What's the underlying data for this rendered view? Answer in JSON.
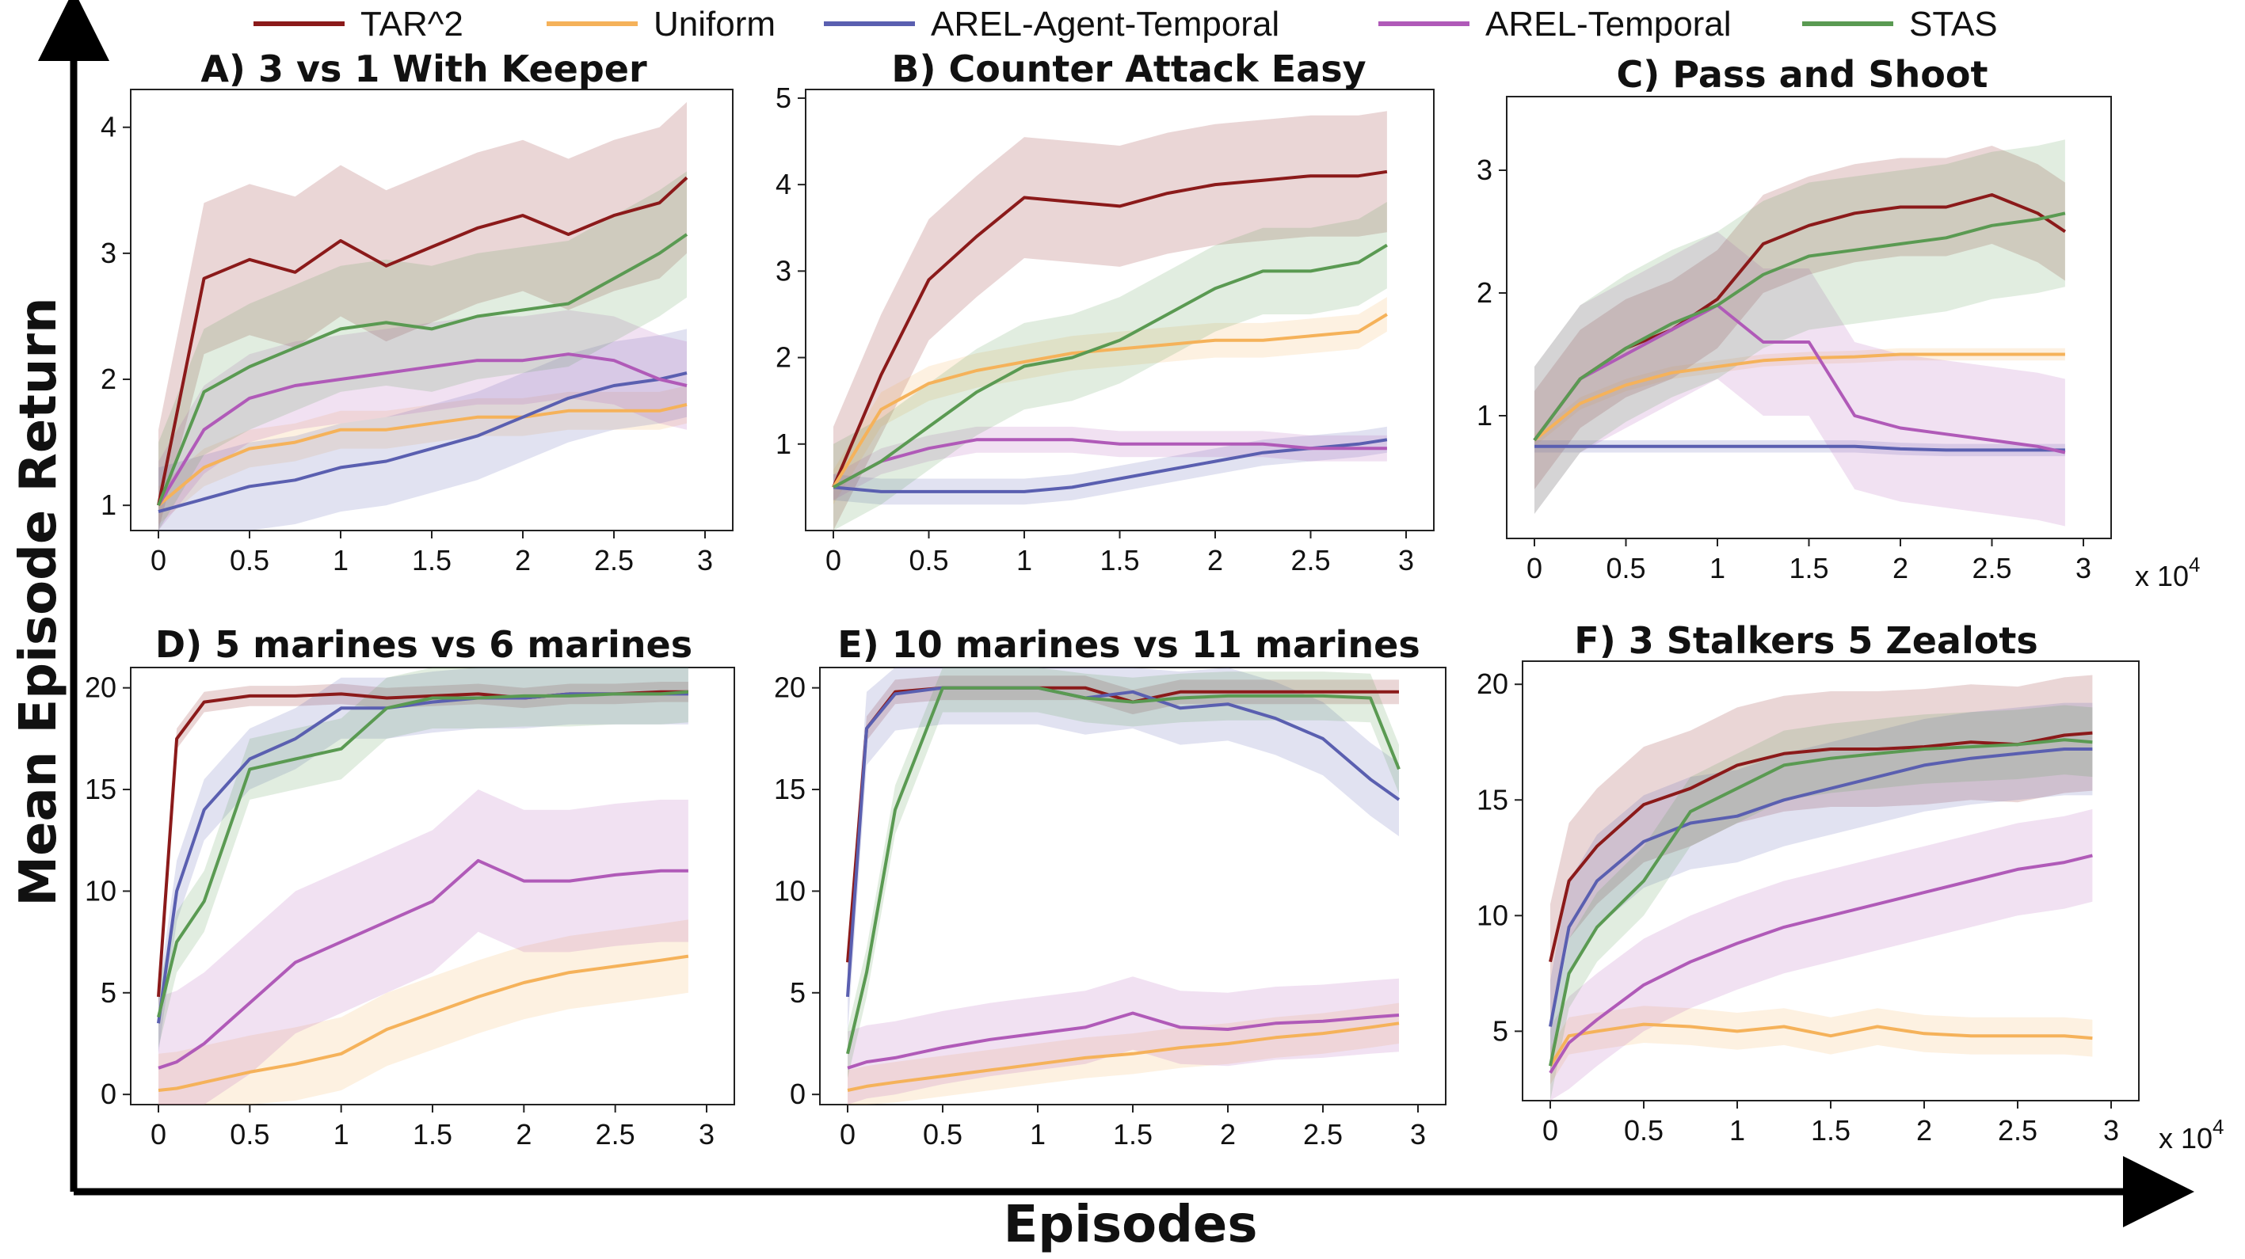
{
  "figure": {
    "xlabel": "Episodes",
    "ylabel": "Mean Episode Return",
    "legend": [
      {
        "name": "TAR^2",
        "color": "#8b1a1a"
      },
      {
        "name": "Uniform",
        "color": "#f5b25a"
      },
      {
        "name": "AREL-Agent-Temporal",
        "color": "#5a5fb0"
      },
      {
        "name": "AREL-Temporal",
        "color": "#b05ab8"
      },
      {
        "name": "STAS",
        "color": "#5a9a52"
      }
    ],
    "x_multiplier": "x 10^4"
  },
  "chart_data": [
    {
      "type": "line",
      "title": "A) 3 vs 1 With Keeper",
      "xlim": [
        0,
        3
      ],
      "ylim": [
        0.8,
        4.3
      ],
      "xticks": [
        "0",
        "0.5",
        "1",
        "1.5",
        "2",
        "2.5",
        "3"
      ],
      "yticks": [
        {
          "v": 1,
          "l": "1"
        },
        {
          "v": 2,
          "l": "2"
        },
        {
          "v": 3,
          "l": "3"
        },
        {
          "v": 4,
          "l": "4"
        }
      ],
      "x": [
        0,
        0.25,
        0.5,
        0.75,
        1,
        1.25,
        1.5,
        1.75,
        2,
        2.25,
        2.5,
        2.75,
        2.9
      ],
      "series": [
        {
          "name": "TAR^2",
          "y": [
            1.0,
            2.8,
            2.95,
            2.85,
            3.1,
            2.9,
            3.05,
            3.2,
            3.3,
            3.15,
            3.3,
            3.4,
            3.6
          ],
          "band": 0.6
        },
        {
          "name": "Uniform",
          "y": [
            1.0,
            1.3,
            1.45,
            1.5,
            1.6,
            1.6,
            1.65,
            1.7,
            1.7,
            1.75,
            1.75,
            1.75,
            1.8
          ],
          "band": 0.15
        },
        {
          "name": "AREL-Agent-Temporal",
          "y": [
            0.95,
            1.05,
            1.15,
            1.2,
            1.3,
            1.35,
            1.45,
            1.55,
            1.7,
            1.85,
            1.95,
            2.0,
            2.05
          ],
          "band": 0.35
        },
        {
          "name": "AREL-Temporal",
          "y": [
            1.0,
            1.6,
            1.85,
            1.95,
            2.0,
            2.05,
            2.1,
            2.15,
            2.15,
            2.2,
            2.15,
            2.0,
            1.95
          ],
          "band": 0.35
        },
        {
          "name": "STAS",
          "y": [
            1.0,
            1.9,
            2.1,
            2.25,
            2.4,
            2.45,
            2.4,
            2.5,
            2.55,
            2.6,
            2.8,
            3.0,
            3.15
          ],
          "band": 0.5
        }
      ]
    },
    {
      "type": "line",
      "title": "B) Counter Attack Easy",
      "xlim": [
        0,
        3
      ],
      "ylim": [
        0.0,
        5.1
      ],
      "xticks": [
        "0",
        "0.5",
        "1",
        "1.5",
        "2",
        "2.5",
        "3"
      ],
      "yticks": [
        {
          "v": 1,
          "l": "1"
        },
        {
          "v": 2,
          "l": "2"
        },
        {
          "v": 3,
          "l": "3"
        },
        {
          "v": 4,
          "l": "4"
        },
        {
          "v": 5,
          "l": "5"
        }
      ],
      "x": [
        0,
        0.25,
        0.5,
        0.75,
        1,
        1.25,
        1.5,
        1.75,
        2,
        2.25,
        2.5,
        2.75,
        2.9
      ],
      "series": [
        {
          "name": "TAR^2",
          "y": [
            0.5,
            1.8,
            2.9,
            3.4,
            3.85,
            3.8,
            3.75,
            3.9,
            4.0,
            4.05,
            4.1,
            4.1,
            4.15
          ],
          "band": 0.7
        },
        {
          "name": "Uniform",
          "y": [
            0.5,
            1.4,
            1.7,
            1.85,
            1.95,
            2.05,
            2.1,
            2.15,
            2.2,
            2.2,
            2.25,
            2.3,
            2.5
          ],
          "band": 0.2
        },
        {
          "name": "AREL-Agent-Temporal",
          "y": [
            0.5,
            0.45,
            0.45,
            0.45,
            0.45,
            0.5,
            0.6,
            0.7,
            0.8,
            0.9,
            0.95,
            1.0,
            1.05
          ],
          "band": 0.15
        },
        {
          "name": "AREL-Temporal",
          "y": [
            0.5,
            0.8,
            0.95,
            1.05,
            1.05,
            1.05,
            1.0,
            1.0,
            1.0,
            1.0,
            0.95,
            0.95,
            0.95
          ],
          "band": 0.15
        },
        {
          "name": "STAS",
          "y": [
            0.5,
            0.8,
            1.2,
            1.6,
            1.9,
            2.0,
            2.2,
            2.5,
            2.8,
            3.0,
            3.0,
            3.1,
            3.3
          ],
          "band": 0.5
        }
      ]
    },
    {
      "type": "line",
      "title": "C) Pass and Shoot",
      "xlim": [
        0,
        3
      ],
      "ylim": [
        0.0,
        3.6
      ],
      "xticks": [
        "0",
        "0.5",
        "1",
        "1.5",
        "2",
        "2.5",
        "3"
      ],
      "yticks": [
        {
          "v": 1,
          "l": "1"
        },
        {
          "v": 2,
          "l": "2"
        },
        {
          "v": 3,
          "l": "3"
        }
      ],
      "x": [
        0,
        0.25,
        0.5,
        0.75,
        1,
        1.25,
        1.5,
        1.75,
        2,
        2.25,
        2.5,
        2.75,
        2.9
      ],
      "series": [
        {
          "name": "TAR^2",
          "y": [
            0.8,
            1.3,
            1.55,
            1.7,
            1.95,
            2.4,
            2.55,
            2.65,
            2.7,
            2.7,
            2.8,
            2.65,
            2.5
          ],
          "band": 0.4
        },
        {
          "name": "Uniform",
          "y": [
            0.8,
            1.1,
            1.25,
            1.35,
            1.4,
            1.45,
            1.47,
            1.48,
            1.5,
            1.5,
            1.5,
            1.5,
            1.5
          ],
          "band": 0.05
        },
        {
          "name": "AREL-Agent-Temporal",
          "y": [
            0.75,
            0.75,
            0.75,
            0.75,
            0.75,
            0.75,
            0.75,
            0.75,
            0.73,
            0.72,
            0.72,
            0.72,
            0.72
          ],
          "band": 0.05
        },
        {
          "name": "AREL-Temporal",
          "y": [
            0.8,
            1.3,
            1.5,
            1.7,
            1.9,
            1.6,
            1.6,
            1.0,
            0.9,
            0.85,
            0.8,
            0.75,
            0.7
          ],
          "band": 0.6
        },
        {
          "name": "STAS",
          "y": [
            0.8,
            1.3,
            1.55,
            1.75,
            1.9,
            2.15,
            2.3,
            2.35,
            2.4,
            2.45,
            2.55,
            2.6,
            2.65
          ],
          "band": 0.6
        }
      ]
    },
    {
      "type": "line",
      "title": "D) 5 marines vs 6 marines",
      "xlim": [
        0,
        3
      ],
      "ylim": [
        -0.5,
        21
      ],
      "xticks": [
        "0",
        "0.5",
        "1",
        "1.5",
        "2",
        "2.5",
        "3"
      ],
      "yticks": [
        {
          "v": 0,
          "l": "0"
        },
        {
          "v": 5,
          "l": "5"
        },
        {
          "v": 10,
          "l": "10"
        },
        {
          "v": 15,
          "l": "15"
        },
        {
          "v": 20,
          "l": "20"
        }
      ],
      "x": [
        0,
        0.1,
        0.25,
        0.5,
        0.75,
        1,
        1.25,
        1.5,
        1.75,
        2,
        2.25,
        2.5,
        2.75,
        2.9
      ],
      "series": [
        {
          "name": "TAR^2",
          "y": [
            4.8,
            17.5,
            19.3,
            19.6,
            19.6,
            19.7,
            19.5,
            19.6,
            19.7,
            19.5,
            19.7,
            19.7,
            19.8,
            19.8
          ],
          "band": 0.5
        },
        {
          "name": "Uniform",
          "y": [
            0.2,
            0.3,
            0.6,
            1.1,
            1.5,
            2.0,
            3.2,
            4.0,
            4.8,
            5.5,
            6.0,
            6.3,
            6.6,
            6.8
          ],
          "band": 1.8
        },
        {
          "name": "AREL-Agent-Temporal",
          "y": [
            3.5,
            10,
            14,
            16.5,
            17.5,
            19,
            19,
            19.3,
            19.5,
            19.5,
            19.7,
            19.7,
            19.7,
            19.7
          ],
          "band": 1.5
        },
        {
          "name": "AREL-Temporal",
          "y": [
            1.3,
            1.6,
            2.5,
            4.5,
            6.5,
            7.5,
            8.5,
            9.5,
            11.5,
            10.5,
            10.5,
            10.8,
            11.0,
            11.0
          ],
          "band": 3.5
        },
        {
          "name": "STAS",
          "y": [
            3.8,
            7.5,
            9.5,
            16,
            16.5,
            17,
            19,
            19.5,
            19.5,
            19.6,
            19.6,
            19.7,
            19.7,
            19.8
          ],
          "band": 1.5
        }
      ]
    },
    {
      "type": "line",
      "title": "E) 10 marines vs 11 marines",
      "xlim": [
        0,
        3
      ],
      "ylim": [
        -0.5,
        21
      ],
      "xticks": [
        "0",
        "0.5",
        "1",
        "1.5",
        "2",
        "2.5",
        "3"
      ],
      "yticks": [
        {
          "v": 0,
          "l": "0"
        },
        {
          "v": 5,
          "l": "5"
        },
        {
          "v": 10,
          "l": "10"
        },
        {
          "v": 15,
          "l": "15"
        },
        {
          "v": 20,
          "l": "20"
        }
      ],
      "x": [
        0,
        0.1,
        0.25,
        0.5,
        0.75,
        1,
        1.25,
        1.5,
        1.75,
        2,
        2.25,
        2.5,
        2.75,
        2.9
      ],
      "series": [
        {
          "name": "TAR^2",
          "y": [
            6.5,
            18,
            19.8,
            20,
            20,
            20,
            20,
            19.3,
            19.8,
            19.8,
            19.8,
            19.8,
            19.8,
            19.8
          ],
          "band": 0.6
        },
        {
          "name": "Uniform",
          "y": [
            0.2,
            0.4,
            0.6,
            0.9,
            1.2,
            1.5,
            1.8,
            2.0,
            2.3,
            2.5,
            2.8,
            3.0,
            3.3,
            3.5
          ],
          "band": 1.0
        },
        {
          "name": "AREL-Agent-Temporal",
          "y": [
            4.8,
            18,
            19.7,
            20,
            20,
            20,
            19.5,
            19.8,
            19.0,
            19.2,
            18.5,
            17.5,
            15.5,
            14.5
          ],
          "band": 1.8
        },
        {
          "name": "AREL-Temporal",
          "y": [
            1.3,
            1.6,
            1.8,
            2.3,
            2.7,
            3.0,
            3.3,
            4.0,
            3.3,
            3.2,
            3.5,
            3.6,
            3.8,
            3.9
          ],
          "band": 1.8
        },
        {
          "name": "STAS",
          "y": [
            2.0,
            6,
            14,
            20,
            20,
            20,
            19.5,
            19.3,
            19.5,
            19.6,
            19.6,
            19.6,
            19.5,
            16.0
          ],
          "band": 1.2
        }
      ]
    },
    {
      "type": "line",
      "title": "F) 3 Stalkers 5 Zealots",
      "xlim": [
        0,
        3
      ],
      "ylim": [
        2.0,
        21
      ],
      "xticks": [
        "0",
        "0.5",
        "1",
        "1.5",
        "2",
        "2.5",
        "3"
      ],
      "yticks": [
        {
          "v": 5,
          "l": "5"
        },
        {
          "v": 10,
          "l": "10"
        },
        {
          "v": 15,
          "l": "15"
        },
        {
          "v": 20,
          "l": "20"
        }
      ],
      "x": [
        0,
        0.1,
        0.25,
        0.5,
        0.75,
        1,
        1.25,
        1.5,
        1.75,
        2,
        2.25,
        2.5,
        2.75,
        2.9
      ],
      "series": [
        {
          "name": "TAR^2",
          "y": [
            8,
            11.5,
            13,
            14.8,
            15.5,
            16.5,
            17,
            17.2,
            17.2,
            17.3,
            17.5,
            17.4,
            17.8,
            17.9
          ],
          "band": 2.5
        },
        {
          "name": "Uniform",
          "y": [
            3.5,
            4.8,
            5.0,
            5.3,
            5.2,
            5.0,
            5.2,
            4.8,
            5.2,
            4.9,
            4.8,
            4.8,
            4.8,
            4.7
          ],
          "band": 0.8
        },
        {
          "name": "AREL-Agent-Temporal",
          "y": [
            5.2,
            9.5,
            11.5,
            13.2,
            14.0,
            14.3,
            15.0,
            15.5,
            16.0,
            16.5,
            16.8,
            17.0,
            17.2,
            17.2
          ],
          "band": 2.0
        },
        {
          "name": "AREL-Temporal",
          "y": [
            3.2,
            4.5,
            5.5,
            7.0,
            8.0,
            8.8,
            9.5,
            10.0,
            10.5,
            11.0,
            11.5,
            12.0,
            12.3,
            12.6
          ],
          "band": 2.0
        },
        {
          "name": "STAS",
          "y": [
            3.5,
            7.5,
            9.5,
            11.5,
            14.5,
            15.5,
            16.5,
            16.8,
            17.0,
            17.2,
            17.3,
            17.4,
            17.6,
            17.5
          ],
          "band": 1.5
        }
      ]
    }
  ]
}
